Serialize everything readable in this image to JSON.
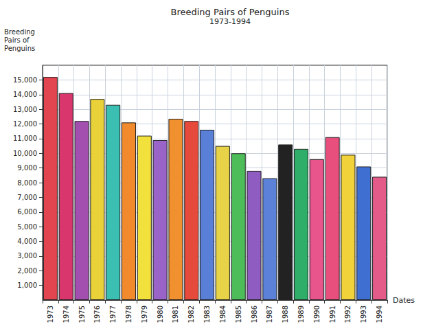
{
  "chart_data": {
    "type": "bar",
    "title": "Breeding Pairs of Penguins",
    "subtitle": "1973-1994",
    "y_label": "Breeding Pairs of Penguins",
    "x_label": "Dates",
    "categories": [
      "1973",
      "1974",
      "1975",
      "1976",
      "1977",
      "1978",
      "1979",
      "1980",
      "1981",
      "1982",
      "1983",
      "1984",
      "1985",
      "1986",
      "1987",
      "1988",
      "1989",
      "1990",
      "1991",
      "1992",
      "1993",
      "1994"
    ],
    "values": [
      15200,
      14100,
      12200,
      13700,
      13300,
      12100,
      11200,
      10900,
      12350,
      12200,
      11600,
      10500,
      10000,
      8800,
      8300,
      10600,
      10300,
      9600,
      11100,
      9900,
      9100,
      8400
    ],
    "colors": [
      "#e2454f",
      "#d9366e",
      "#a24fb0",
      "#e9d13a",
      "#3cbfb3",
      "#f08a2c",
      "#f2e03c",
      "#9a63c8",
      "#f0902e",
      "#e64a3a",
      "#5a7fd6",
      "#e8d248",
      "#4dbd5a",
      "#8f5cc2",
      "#5b82d8",
      "#222222",
      "#2fae6a",
      "#e8558c",
      "#e84f7c",
      "#f2d23a",
      "#3f6fd0",
      "#e45b8a"
    ],
    "ylim": [
      0,
      16000
    ],
    "yticks": [
      {
        "value": 1000,
        "label": "1,000"
      },
      {
        "value": 2000,
        "label": "2,000"
      },
      {
        "value": 3000,
        "label": "3,000"
      },
      {
        "value": 4000,
        "label": "4,000"
      },
      {
        "value": 5000,
        "label": "5,000"
      },
      {
        "value": 6000,
        "label": "6,000"
      },
      {
        "value": 7000,
        "label": "7,000"
      },
      {
        "value": 8000,
        "label": "8,000"
      },
      {
        "value": 9000,
        "label": "9,000"
      },
      {
        "value": 10000,
        "label": "10,000"
      },
      {
        "value": 11000,
        "label": "11,000"
      },
      {
        "value": 12000,
        "label": "12,000"
      },
      {
        "value": 13000,
        "label": "13,000"
      },
      {
        "value": 14000,
        "label": "14,000"
      },
      {
        "value": 15000,
        "label": "15,000"
      }
    ],
    "grid": true
  }
}
